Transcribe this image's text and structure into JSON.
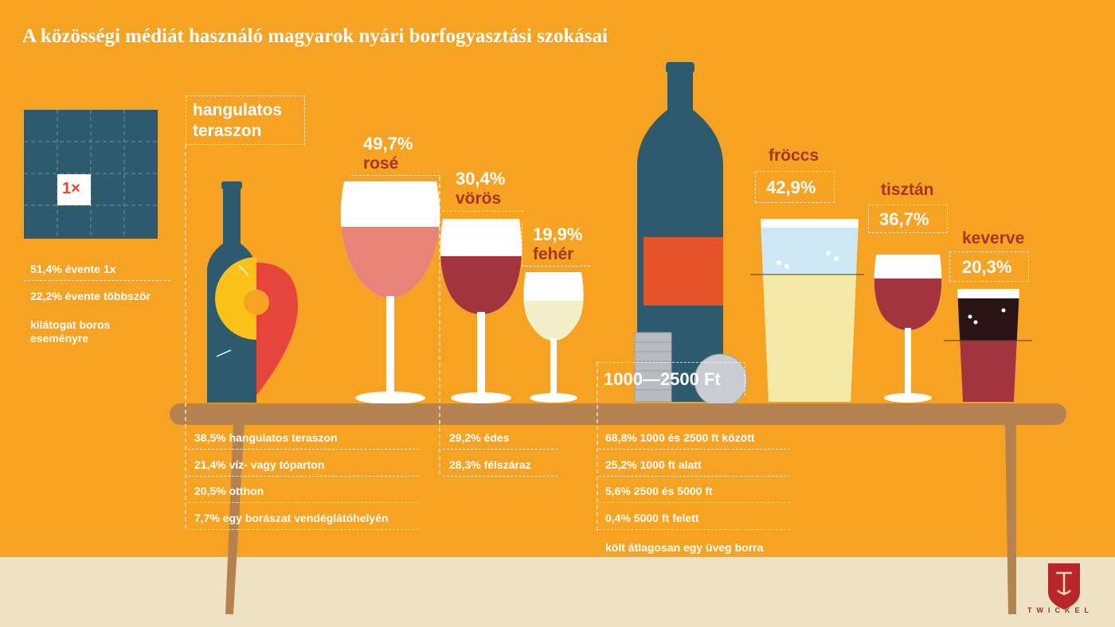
{
  "header": {
    "title": "A közösségi médiát használó magyarok nyári borfogyasztási szokásai"
  },
  "events": {
    "calendar_label": "1×",
    "items": [
      "51,4% évente 1x",
      "22,2% évente többször"
    ],
    "caption": "kilátogat boros eseményre"
  },
  "location": {
    "heading": "hangulatos teraszon",
    "items": [
      "38,5% hangulatos teraszon",
      "21,4% víz- vagy tóparton",
      "20,5% otthon",
      "7,7% egy borászat vendéglátóhelyén"
    ]
  },
  "wine_types": {
    "items": [
      {
        "percent": "49,7%",
        "label": "rosé"
      },
      {
        "percent": "30,4%",
        "label": "vörös"
      },
      {
        "percent": "19,9%",
        "label": "fehér"
      }
    ]
  },
  "sweetness": {
    "items": [
      "29,2% édes",
      "28,3% félszáraz"
    ]
  },
  "price": {
    "badge": "1000—2500 Ft",
    "items": [
      "68,8% 1000 és 2500 ft között",
      "25,2% 1000 ft alatt",
      "5,6% 2500 és 5000 ft",
      "0,4% 5000 ft felett"
    ],
    "caption": "költ átlagosan egy üveg borra"
  },
  "mixing": {
    "items": [
      {
        "label": "fröccs",
        "percent": "42,9%"
      },
      {
        "label": "tisztán",
        "percent": "36,7%"
      },
      {
        "label": "keverve",
        "percent": "20,3%"
      }
    ]
  },
  "logo": {
    "text": "TWICKEL"
  }
}
